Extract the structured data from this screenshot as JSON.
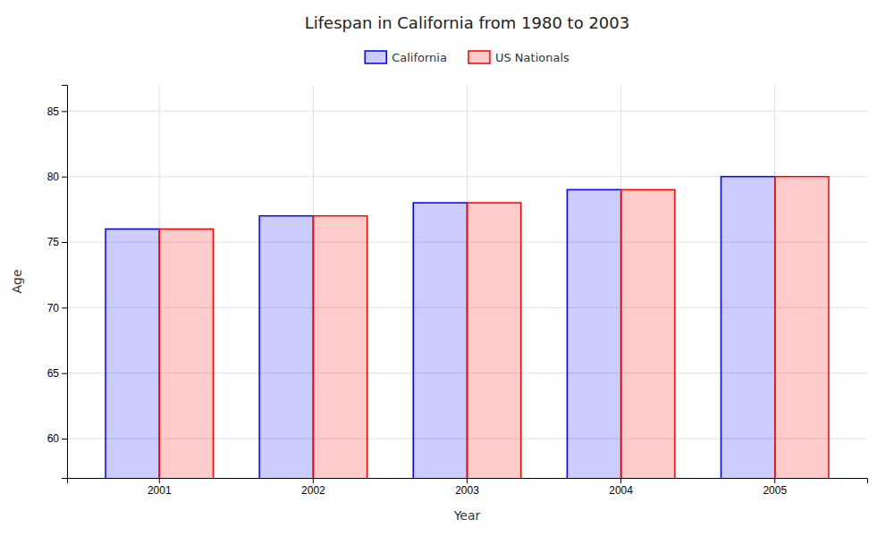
{
  "chart_data": {
    "type": "bar",
    "title": "Lifespan in California from 1980 to 2003",
    "xlabel": "Year",
    "ylabel": "Age",
    "categories": [
      "2001",
      "2002",
      "2003",
      "2004",
      "2005"
    ],
    "series": [
      {
        "name": "California",
        "color": "#0000ff",
        "values": [
          76,
          77,
          78,
          79,
          80
        ]
      },
      {
        "name": "US Nationals",
        "color": "#ff0000",
        "values": [
          76,
          77,
          78,
          79,
          80
        ]
      }
    ],
    "ylim": [
      57,
      87
    ],
    "yticks": [
      60,
      65,
      70,
      75,
      80,
      85
    ],
    "grid": true,
    "legend": "top"
  }
}
